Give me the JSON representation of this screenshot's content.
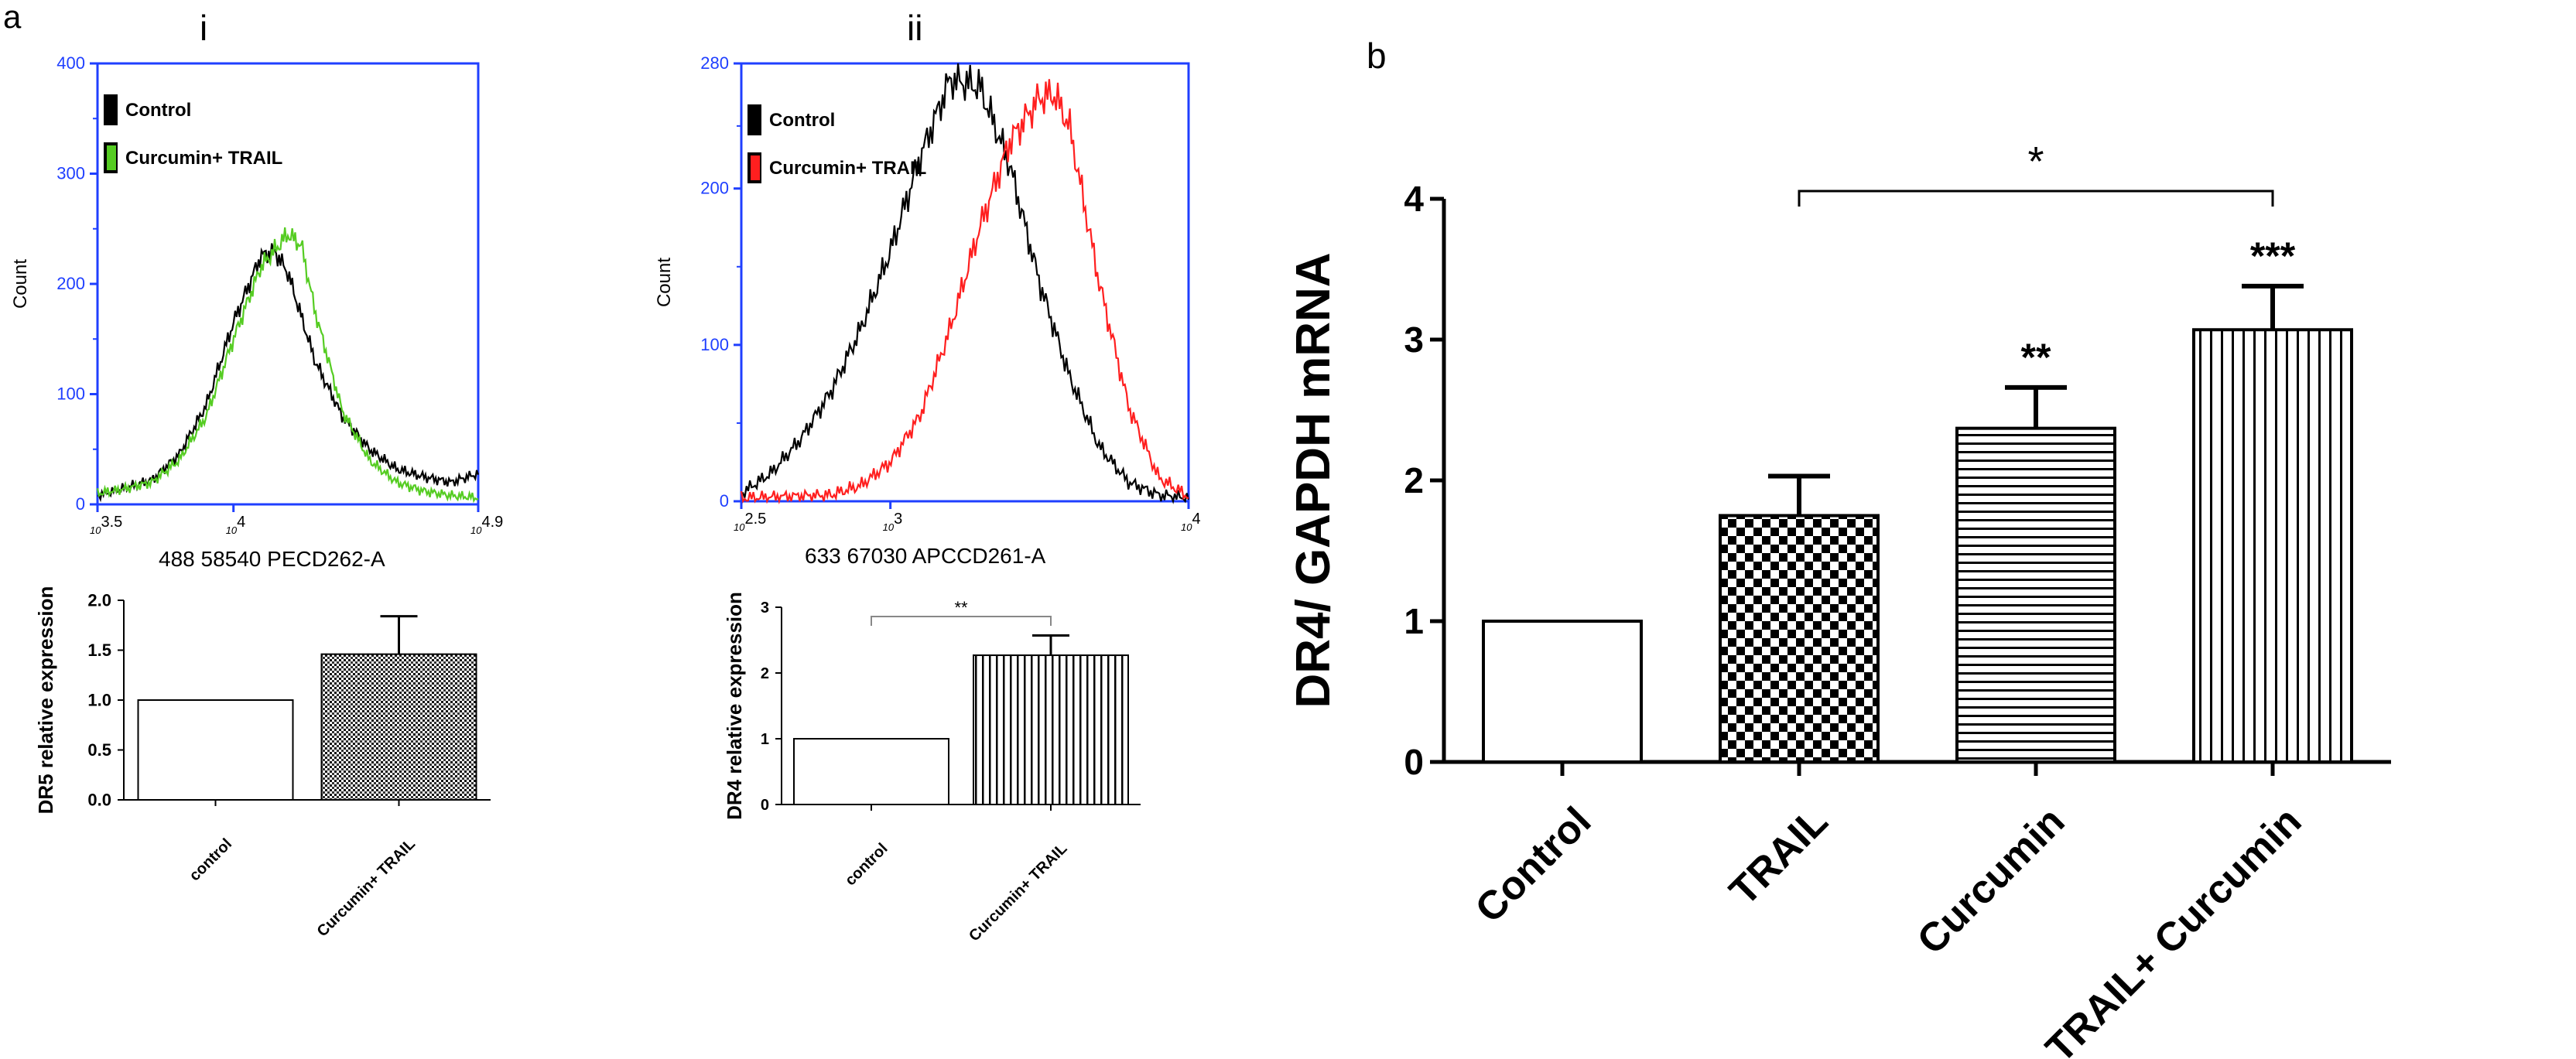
{
  "panel_labels": {
    "a": "a",
    "b": "b",
    "i": "i",
    "ii": "ii"
  },
  "colors": {
    "axis_blue": "#1f3fff",
    "control": "#000000",
    "green": "#55cc22",
    "red": "#ff1f1f"
  },
  "chart_data": [
    {
      "id": "hist_i",
      "type": "line",
      "title": "i",
      "xlabel": "488 58540 PECD262-A",
      "ylabel": "Count",
      "ylim": [
        0,
        400
      ],
      "yticks": [
        "0",
        "100",
        "200",
        "300",
        "400"
      ],
      "xtick_labels": [
        {
          "base": "10",
          "exp": "3.5"
        },
        {
          "base": "10",
          "exp": "4"
        },
        {
          "base": "10",
          "exp": "4.9"
        }
      ],
      "x_log_range": [
        3.5,
        4.9
      ],
      "legend": [
        "Control",
        "Curcumin+ TRAIL"
      ],
      "series": [
        {
          "name": "Control",
          "color": "#000000",
          "x": [
            3.5,
            3.6,
            3.7,
            3.8,
            3.9,
            4.0,
            4.1,
            4.15,
            4.2,
            4.3,
            4.4,
            4.5,
            4.6,
            4.7,
            4.8,
            4.9
          ],
          "y": [
            8,
            15,
            22,
            45,
            90,
            165,
            225,
            230,
            210,
            130,
            80,
            50,
            32,
            25,
            20,
            28
          ]
        },
        {
          "name": "Curcumin+ TRAIL",
          "color": "#55cc22",
          "x": [
            3.5,
            3.6,
            3.7,
            3.8,
            3.9,
            4.0,
            4.1,
            4.2,
            4.25,
            4.3,
            4.4,
            4.5,
            4.6,
            4.7,
            4.8,
            4.9
          ],
          "y": [
            10,
            14,
            20,
            40,
            80,
            150,
            215,
            245,
            235,
            175,
            85,
            40,
            20,
            12,
            8,
            6
          ]
        }
      ]
    },
    {
      "id": "hist_ii",
      "type": "line",
      "title": "ii",
      "xlabel": "633 67030 APCCD261-A",
      "ylabel": "Count",
      "ylim": [
        0,
        280
      ],
      "yticks": [
        "0",
        "100",
        "200",
        "280"
      ],
      "xtick_labels": [
        {
          "base": "10",
          "exp": "2.5"
        },
        {
          "base": "10",
          "exp": "3"
        },
        {
          "base": "10",
          "exp": "4"
        }
      ],
      "x_log_range": [
        2.5,
        4
      ],
      "legend": [
        "Control",
        "Curcumin+ TRAIL"
      ],
      "series": [
        {
          "name": "Control",
          "color": "#000000",
          "x": [
            2.5,
            2.6,
            2.7,
            2.8,
            2.9,
            3.0,
            3.1,
            3.2,
            3.3,
            3.4,
            3.5,
            3.6,
            3.7,
            3.8,
            3.9,
            4.0
          ],
          "y": [
            5,
            18,
            40,
            70,
            110,
            160,
            220,
            270,
            265,
            215,
            140,
            80,
            35,
            12,
            4,
            2
          ]
        },
        {
          "name": "Curcumin+ TRAIL",
          "color": "#ff1f1f",
          "x": [
            2.5,
            2.8,
            2.9,
            3.0,
            3.1,
            3.2,
            3.3,
            3.4,
            3.5,
            3.55,
            3.6,
            3.7,
            3.8,
            3.9,
            4.0
          ],
          "y": [
            2,
            4,
            10,
            25,
            55,
            110,
            175,
            230,
            258,
            260,
            240,
            140,
            60,
            15,
            3
          ]
        }
      ]
    },
    {
      "id": "bar_dr5",
      "type": "bar",
      "ylabel": "DR5 relative expression",
      "ylim": [
        0,
        2.0
      ],
      "yticks": [
        "0.0",
        "0.5",
        "1.0",
        "1.5",
        "2.0"
      ],
      "categories": [
        "control",
        "Curcumin+ TRAIL"
      ],
      "values": [
        1.0,
        1.46
      ],
      "errors": [
        0,
        0.38
      ],
      "patterns": [
        "none",
        "dense-dots"
      ]
    },
    {
      "id": "bar_dr4_small",
      "type": "bar",
      "ylabel": "DR4 relative expression",
      "ylim": [
        0,
        3
      ],
      "yticks": [
        "0",
        "1",
        "2",
        "3"
      ],
      "categories": [
        "control",
        "Curcumin+ TRAIL"
      ],
      "values": [
        1.0,
        2.27
      ],
      "errors": [
        0,
        0.3
      ],
      "patterns": [
        "none",
        "vertical-lines"
      ],
      "significance": [
        {
          "from": 0,
          "to": 1,
          "label": "**"
        }
      ]
    },
    {
      "id": "bar_b",
      "type": "bar",
      "title": "b",
      "ylabel": "DR4/ GAPDH mRNA",
      "ylim": [
        0,
        4
      ],
      "yticks": [
        "0",
        "1",
        "2",
        "3",
        "4"
      ],
      "categories": [
        "Control",
        "TRAIL",
        "Curcumin",
        "TRAIL+ Curcumin"
      ],
      "values": [
        1.0,
        1.75,
        2.37,
        3.07
      ],
      "errors": [
        0,
        0.28,
        0.29,
        0.31
      ],
      "patterns": [
        "none",
        "checker",
        "horizontal-lines",
        "vertical-lines"
      ],
      "bar_labels": [
        "",
        "",
        "**",
        "***"
      ],
      "significance": [
        {
          "from": 1,
          "to": 3,
          "label": "*"
        }
      ]
    }
  ]
}
